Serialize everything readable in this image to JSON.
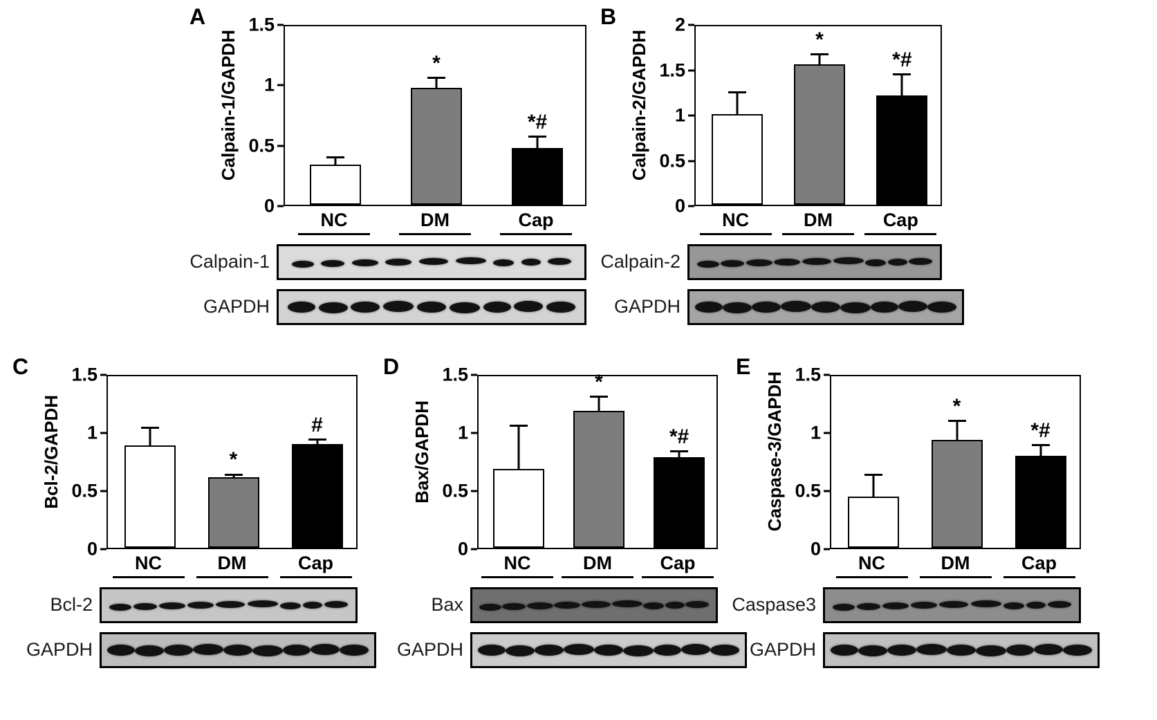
{
  "figure": {
    "groups": [
      "NC",
      "DM",
      "Cap"
    ],
    "bar_colors": {
      "NC": "#ffffff",
      "DM": "#7d7d7d",
      "Cap": "#000000"
    }
  },
  "chart_data": [
    {
      "type": "bar",
      "panel": "A",
      "title": "",
      "xlabel": "",
      "ylabel": "Calpain-1/GAPDH",
      "categories": [
        "NC",
        "DM",
        "Cap"
      ],
      "values": [
        0.33,
        0.97,
        0.47
      ],
      "errors": [
        0.07,
        0.09,
        0.1
      ],
      "significance": [
        "",
        "*",
        "*#"
      ],
      "ylim": [
        0,
        1.5
      ],
      "ytick_labels": [
        "0",
        "0.5",
        "1",
        "1.5"
      ],
      "bar_colors": [
        "#ffffff",
        "#7d7d7d",
        "#000000"
      ],
      "legend": "none",
      "grid": false,
      "blots": [
        {
          "label": "Calpain-1",
          "bg": "#dbdbdb"
        },
        {
          "label": "GAPDH",
          "bg": "#d3d3d3"
        }
      ]
    },
    {
      "type": "bar",
      "panel": "B",
      "title": "",
      "xlabel": "",
      "ylabel": "Calpain-2/GAPDH",
      "categories": [
        "NC",
        "DM",
        "Cap"
      ],
      "values": [
        1.0,
        1.55,
        1.21
      ],
      "errors": [
        0.25,
        0.12,
        0.24
      ],
      "significance": [
        "",
        "*",
        "*#"
      ],
      "ylim": [
        0,
        2
      ],
      "ytick_labels": [
        "0",
        "0.5",
        "1",
        "1.5",
        "2"
      ],
      "bar_colors": [
        "#ffffff",
        "#7d7d7d",
        "#000000"
      ],
      "legend": "none",
      "grid": false,
      "blots": [
        {
          "label": "Calpain-2",
          "bg": "#979797"
        },
        {
          "label": "GAPDH",
          "bg": "#a5a5a5"
        }
      ]
    },
    {
      "type": "bar",
      "panel": "C",
      "title": "",
      "xlabel": "",
      "ylabel": "Bcl-2/GAPDH",
      "categories": [
        "NC",
        "DM",
        "Cap"
      ],
      "values": [
        0.88,
        0.61,
        0.89
      ],
      "errors": [
        0.16,
        0.03,
        0.05
      ],
      "significance": [
        "",
        "*",
        "#"
      ],
      "ylim": [
        0,
        1.5
      ],
      "ytick_labels": [
        "0",
        "0.5",
        "1",
        "1.5"
      ],
      "bar_colors": [
        "#ffffff",
        "#7d7d7d",
        "#000000"
      ],
      "legend": "none",
      "grid": false,
      "blots": [
        {
          "label": "Bcl-2",
          "bg": "#c6c6c6"
        },
        {
          "label": "GAPDH",
          "bg": "#bdbdbd"
        }
      ]
    },
    {
      "type": "bar",
      "panel": "D",
      "title": "",
      "xlabel": "",
      "ylabel": "Bax/GAPDH",
      "categories": [
        "NC",
        "DM",
        "Cap"
      ],
      "values": [
        0.68,
        1.18,
        0.78
      ],
      "errors": [
        0.38,
        0.13,
        0.06
      ],
      "significance": [
        "",
        "*",
        "*#"
      ],
      "ylim": [
        0,
        1.5
      ],
      "ytick_labels": [
        "0",
        "0.5",
        "1",
        "1.5"
      ],
      "bar_colors": [
        "#ffffff",
        "#7d7d7d",
        "#000000"
      ],
      "legend": "none",
      "grid": false,
      "blots": [
        {
          "label": "Bax",
          "bg": "#6f6f6f"
        },
        {
          "label": "GAPDH",
          "bg": "#cccccc"
        }
      ]
    },
    {
      "type": "bar",
      "panel": "E",
      "title": "",
      "xlabel": "",
      "ylabel": "Caspase-3/GAPDH",
      "categories": [
        "NC",
        "DM",
        "Cap"
      ],
      "values": [
        0.44,
        0.93,
        0.79
      ],
      "errors": [
        0.2,
        0.17,
        0.1
      ],
      "significance": [
        "",
        "*",
        "*#"
      ],
      "ylim": [
        0,
        1.5
      ],
      "ytick_labels": [
        "0",
        "0.5",
        "1",
        "1.5"
      ],
      "bar_colors": [
        "#ffffff",
        "#7d7d7d",
        "#000000"
      ],
      "legend": "none",
      "grid": false,
      "blots": [
        {
          "label": "Caspase3",
          "bg": "#8d8d8d"
        },
        {
          "label": "GAPDH",
          "bg": "#c0c0c0"
        }
      ]
    }
  ]
}
